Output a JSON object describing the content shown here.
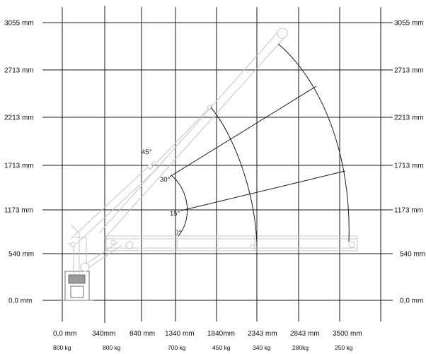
{
  "diagram": {
    "height_labels": [
      "3055 mm",
      "2713 mm",
      "2213 mm",
      "1713 mm",
      "1173 mm",
      "540 mm",
      "0,0 mm"
    ],
    "reach_labels": [
      "0,0 mm",
      "340mm",
      "840 mm",
      "1340 mm",
      "1840mm",
      "2343 mm",
      "2843 mm",
      "3500 mm"
    ],
    "load_labels": [
      "800 kg",
      "800 kg",
      "700 kg",
      "450 kg",
      "340 kg",
      "280kg",
      "250 kg"
    ],
    "angle_labels": [
      "45°",
      "30°",
      "15°",
      "0°"
    ],
    "colors": {
      "grid": "#1a1a1a",
      "boom": "#c4c4c4",
      "background": "#ffffff"
    }
  }
}
